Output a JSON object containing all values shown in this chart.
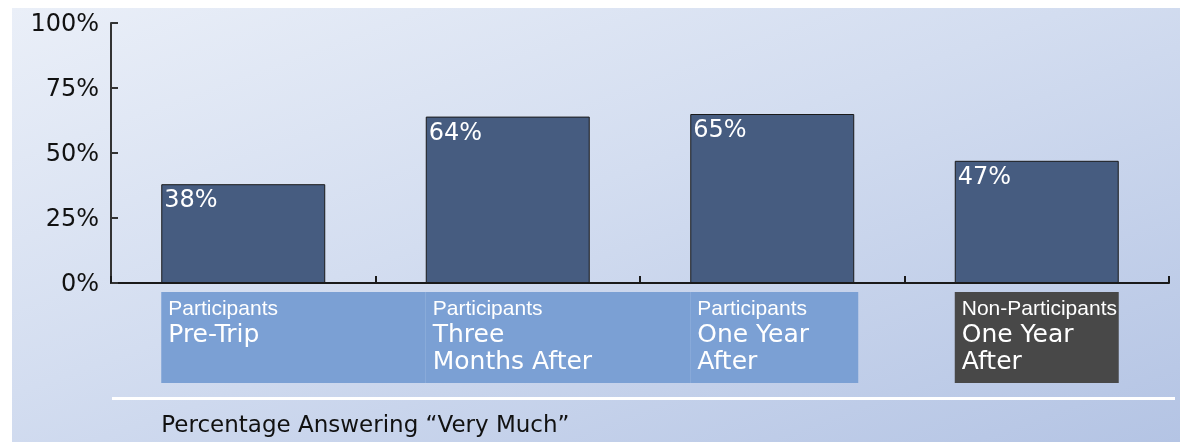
{
  "chart_data": {
    "type": "bar",
    "categories": [
      "Participants\nPre-Trip",
      "Participants\nThree\nMonths After",
      "Participants\nOne Year\nAfter",
      "Non-Participants\nOne Year\nAfter"
    ],
    "values": [
      38,
      64,
      65,
      47
    ],
    "color": "#465c80",
    "value_labels": [
      "38%",
      "64%",
      "65%",
      "47%"
    ],
    "xlabel": "Percentage Answering “Very Much”",
    "ylim": [
      0,
      100
    ],
    "yticks": [
      {
        "value": 0,
        "label": "0%"
      },
      {
        "value": 25,
        "label": "25%"
      },
      {
        "value": 50,
        "label": "50%"
      },
      {
        "value": 75,
        "label": "75%"
      },
      {
        "value": 100,
        "label": "100%"
      }
    ]
  }
}
